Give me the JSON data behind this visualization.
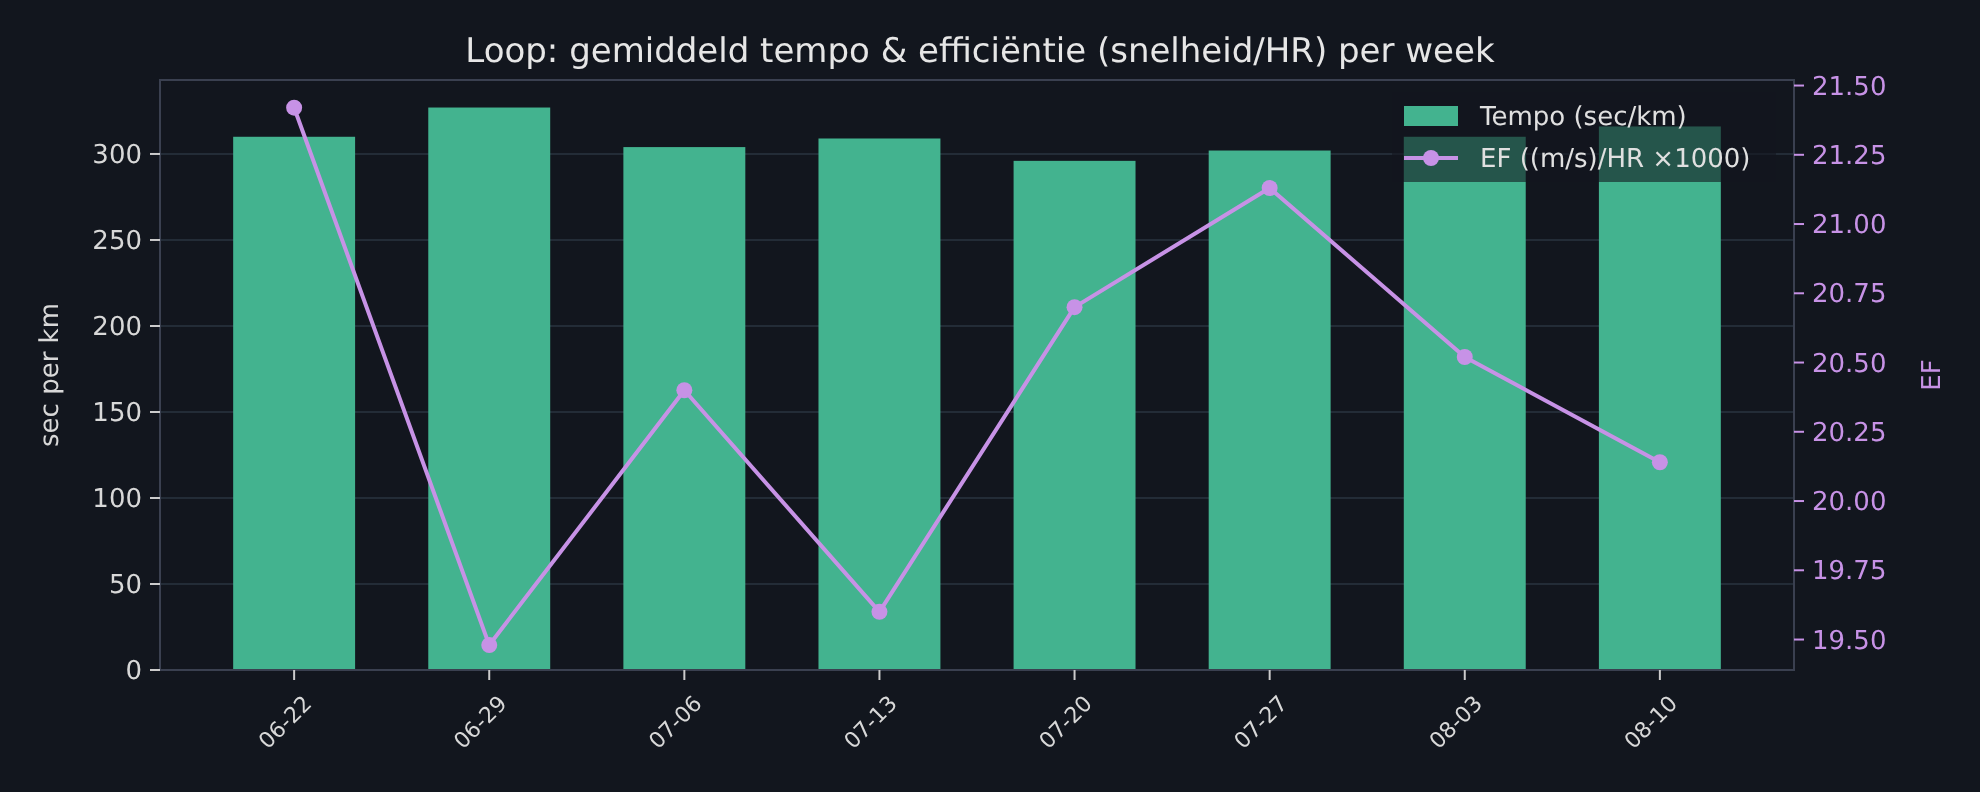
{
  "chart_data": {
    "type": "bar",
    "title": "Loop: gemiddeld tempo & efficiëntie (snelheid/HR) per week",
    "ylabel": "sec per km",
    "y2label": "EF",
    "categories": [
      "06-22",
      "06-29",
      "07-06",
      "07-13",
      "07-20",
      "07-27",
      "08-03",
      "08-10"
    ],
    "series": [
      {
        "name": "Tempo (sec/km)",
        "color": "#43b38f",
        "values": [
          310,
          327,
          304,
          309,
          296,
          302,
          310,
          316
        ]
      },
      {
        "name": "EF ((m/s)/HR ×1000)",
        "type": "line",
        "axis": "y2",
        "color": "#c792e6",
        "values": [
          21.42,
          19.48,
          20.4,
          19.6,
          20.7,
          21.13,
          20.52,
          20.14
        ]
      }
    ],
    "ylim": [
      0,
      343
    ],
    "yticks": [
      0,
      50,
      100,
      150,
      200,
      250,
      300
    ],
    "y2lim": [
      19.39,
      21.52
    ],
    "y2ticks": [
      {
        "value": 19.5,
        "label": "19.50"
      },
      {
        "value": 19.75,
        "label": "19.75"
      },
      {
        "value": 20,
        "label": "20.00"
      },
      {
        "value": 20.25,
        "label": "20.25"
      },
      {
        "value": 20.5,
        "label": "20.50"
      },
      {
        "value": 20.75,
        "label": "20.75"
      },
      {
        "value": 21,
        "label": "21.00"
      },
      {
        "value": 21.25,
        "label": "21.25"
      },
      {
        "value": 21.5,
        "label": "21.50"
      }
    ],
    "grid": "y",
    "legend": "top right",
    "marker": "circle",
    "line_style": "solid"
  }
}
